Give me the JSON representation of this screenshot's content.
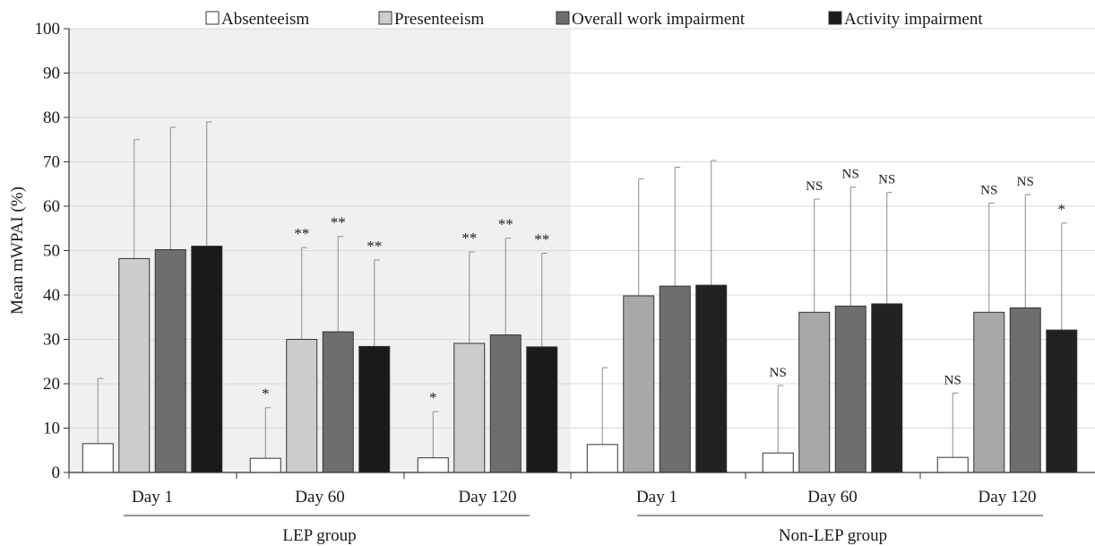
{
  "chart_data": {
    "type": "bar",
    "ylabel": "Mean mWPAI (%)",
    "ylim": [
      0,
      100
    ],
    "yticks": [
      0,
      10,
      20,
      30,
      40,
      50,
      60,
      70,
      80,
      90,
      100
    ],
    "grid": true,
    "legend_position": "top",
    "series": [
      {
        "name": "Absenteeism",
        "color": "#ffffff"
      },
      {
        "name": "Presenteeism",
        "color": "#cccccc"
      },
      {
        "name": "Overall work impairment",
        "color": "#6e6e6e"
      },
      {
        "name": "Activity impairment",
        "color": "#1a1a1a"
      }
    ],
    "groups": [
      {
        "label": "LEP group",
        "shaded": true,
        "categories": [
          {
            "label": "Day 1",
            "values": [
              6.5,
              48.2,
              50.2,
              51.0
            ],
            "errors": [
              21.2,
              75.0,
              77.8,
              79.0
            ],
            "annotations": [
              "",
              "",
              "",
              ""
            ]
          },
          {
            "label": "Day 60",
            "values": [
              3.2,
              30.0,
              31.7,
              28.4
            ],
            "errors": [
              14.6,
              50.7,
              53.2,
              47.9
            ],
            "annotations": [
              "*",
              "**",
              "**",
              "**"
            ]
          },
          {
            "label": "Day 120",
            "values": [
              3.3,
              29.1,
              31.0,
              28.3
            ],
            "errors": [
              13.7,
              49.7,
              52.8,
              49.4
            ],
            "annotations": [
              "*",
              "**",
              "**",
              "**"
            ]
          }
        ]
      },
      {
        "label": "Non-LEP group",
        "shaded": false,
        "categories": [
          {
            "label": "Day 1",
            "values": [
              6.3,
              39.8,
              42.0,
              42.2
            ],
            "errors": [
              23.6,
              66.2,
              68.8,
              70.3
            ],
            "annotations": [
              "",
              "",
              "",
              ""
            ]
          },
          {
            "label": "Day 60",
            "values": [
              4.4,
              36.1,
              37.5,
              38.0
            ],
            "errors": [
              19.6,
              61.6,
              64.3,
              63.1
            ],
            "annotations": [
              "NS",
              "NS",
              "NS",
              "NS"
            ]
          },
          {
            "label": "Day 120",
            "values": [
              3.4,
              36.1,
              37.1,
              32.1
            ],
            "errors": [
              17.9,
              60.7,
              62.6,
              56.2
            ],
            "annotations": [
              "NS",
              "NS",
              "NS",
              "*"
            ]
          }
        ]
      }
    ],
    "colors": {
      "shade": "#f0f0f0",
      "grid": "#d9d9d9",
      "axis": "#333333",
      "error_bar": "#8c8c8c",
      "bar_outline": "#333333",
      "non_lep_presenteeism": "#a8a8a8",
      "non_lep_overall": "#6e6e6e",
      "non_lep_activity": "#222222"
    }
  }
}
